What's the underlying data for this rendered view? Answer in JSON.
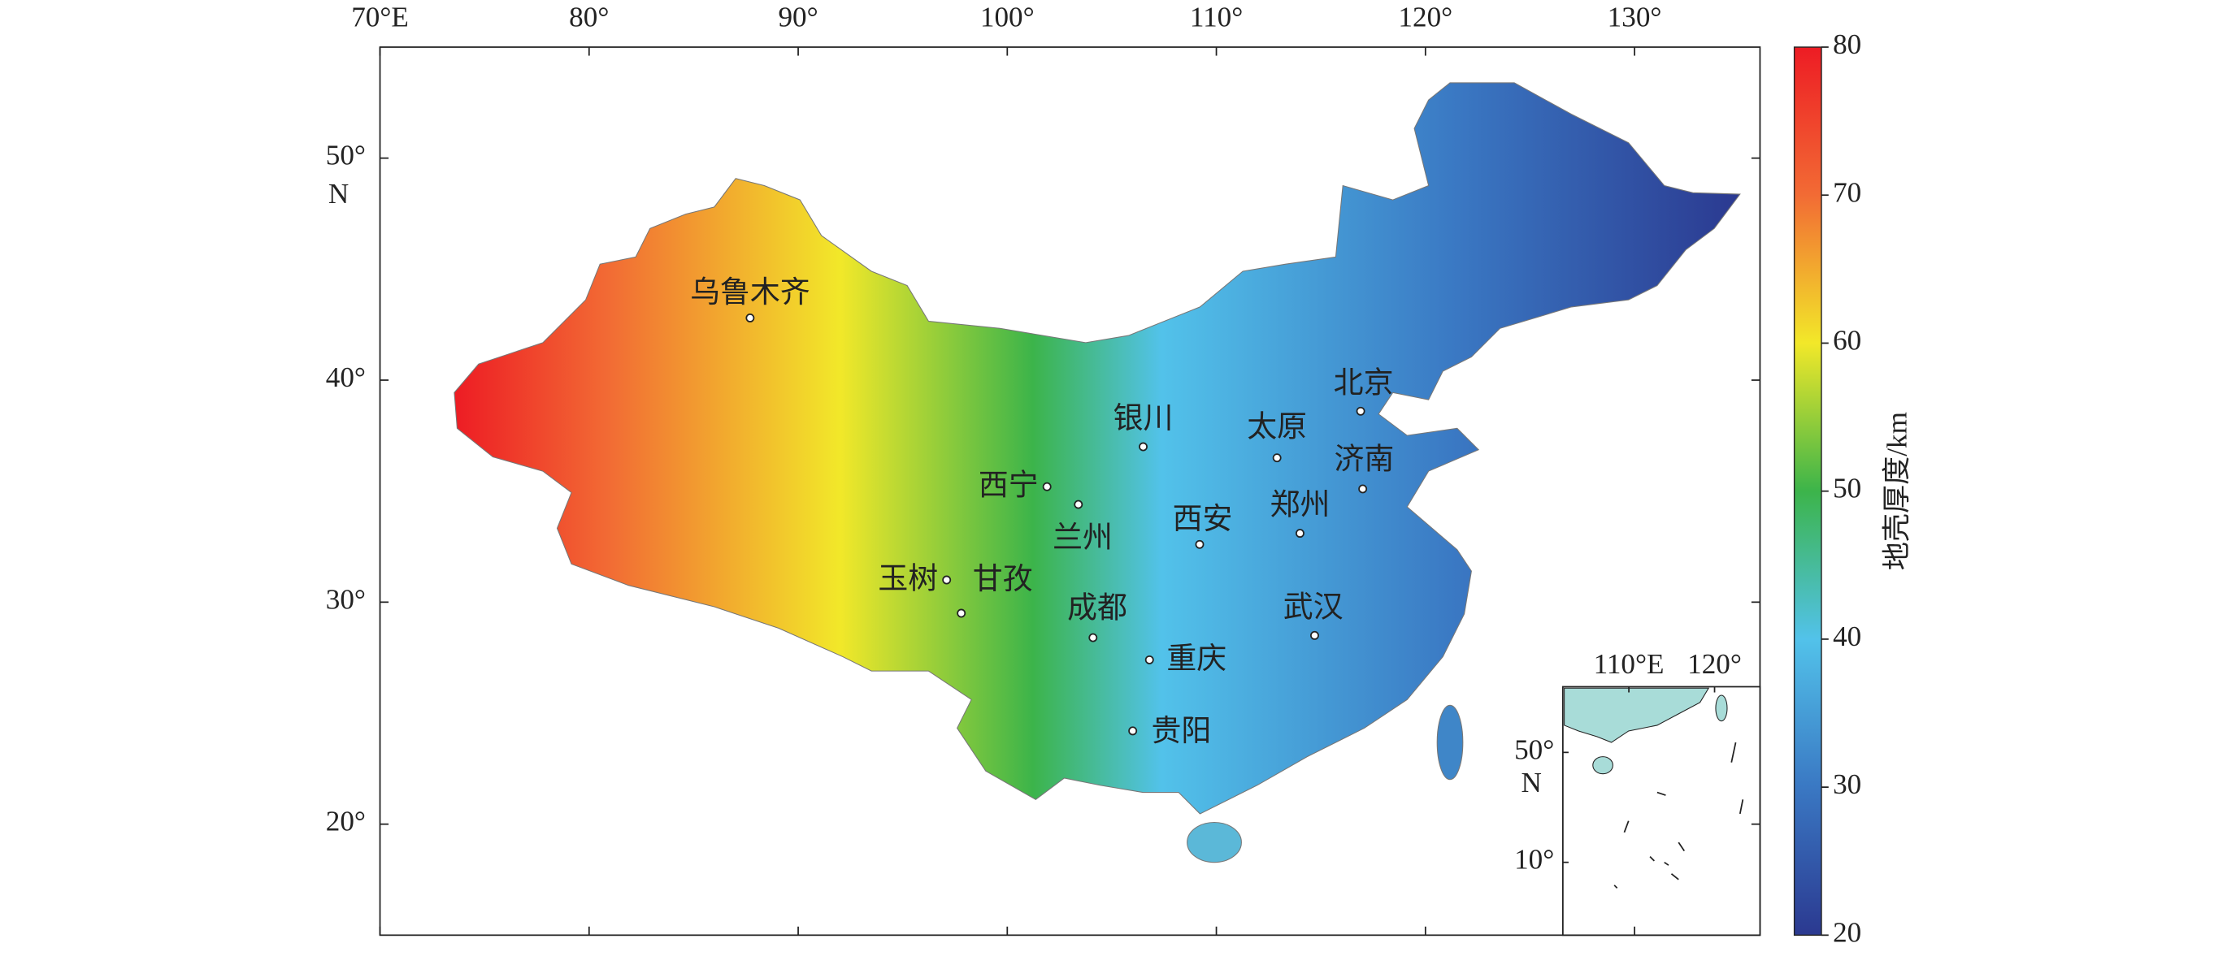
{
  "chart_data": {
    "type": "map",
    "xlim": [
      70,
      136
    ],
    "ylim": [
      15,
      55
    ],
    "xticks": [
      {
        "value": 70,
        "label": "70°E"
      },
      {
        "value": 80,
        "label": "80°"
      },
      {
        "value": 90,
        "label": "90°"
      },
      {
        "value": 100,
        "label": "100°"
      },
      {
        "value": 110,
        "label": "110°"
      },
      {
        "value": 120,
        "label": "120°"
      },
      {
        "value": 130,
        "label": "130°"
      }
    ],
    "yticks": [
      {
        "value": 20,
        "label": "20°"
      },
      {
        "value": 30,
        "label": "30°"
      },
      {
        "value": 40,
        "label": "40°"
      },
      {
        "value": 50,
        "label": "50°"
      }
    ],
    "y_unit": "N",
    "cities": [
      "乌鲁木齐",
      "北京",
      "银川",
      "太原",
      "济南",
      "西宁",
      "兰州",
      "西安",
      "郑州",
      "玉树",
      "甘孜",
      "成都",
      "武汉",
      "重庆",
      "贵阳"
    ],
    "colorbar": {
      "label": "地壳厚度/km",
      "lim": [
        20,
        80
      ],
      "ticks": [
        20,
        30,
        40,
        50,
        60,
        70,
        80
      ],
      "colors": [
        "#2b3990",
        "#3a78c3",
        "#52c2ea",
        "#3cb44a",
        "#f2e829",
        "#f26b34",
        "#ed1c24"
      ]
    },
    "inset": {
      "xlim": [
        102.3,
        125.3
      ],
      "ylim": [
        -16.5,
        73.9
      ],
      "xticks": [
        {
          "value": 110,
          "label": "110°E"
        },
        {
          "value": 120,
          "label": "120°"
        }
      ],
      "yticks": [
        {
          "value": 50,
          "label": "50°"
        },
        {
          "value": 10,
          "label": "10°"
        }
      ],
      "y_unit": "N"
    }
  }
}
